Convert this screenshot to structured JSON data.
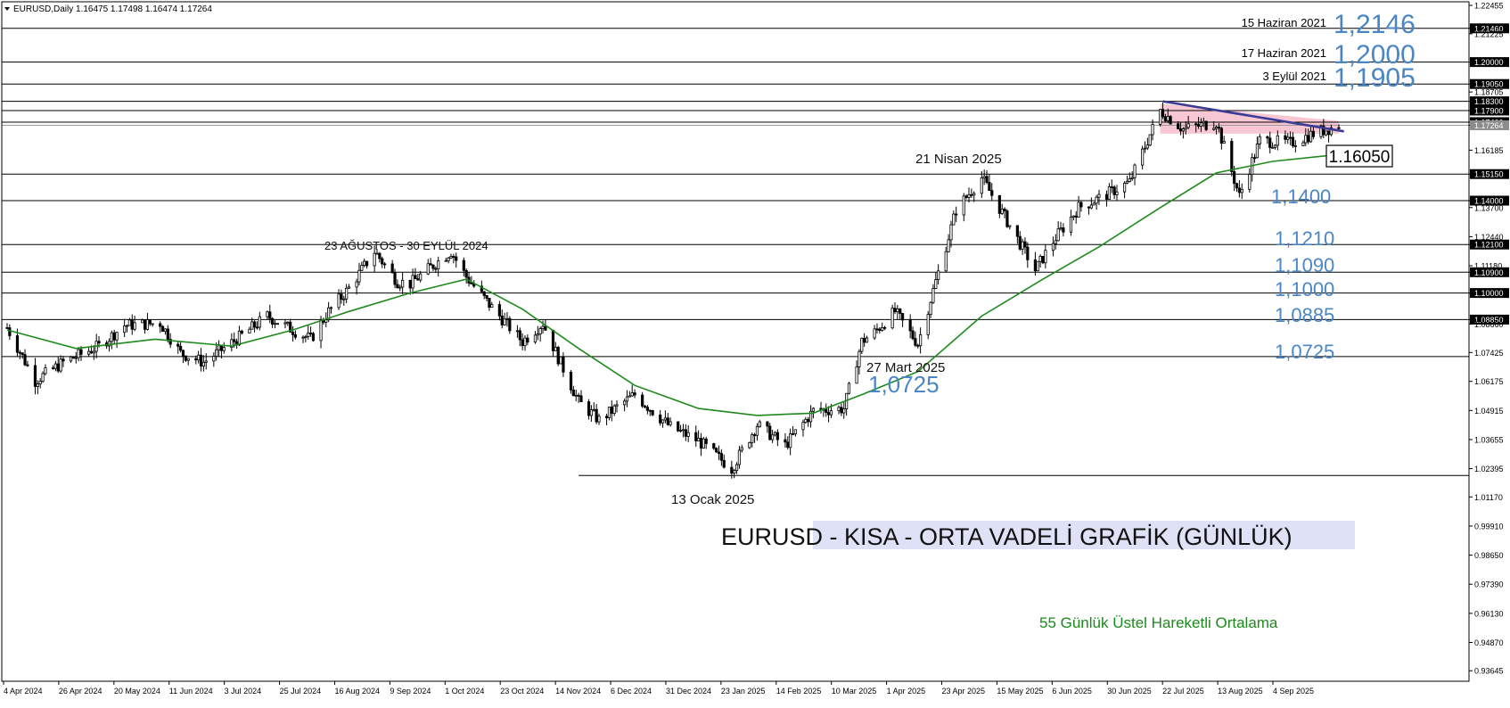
{
  "chart_data": {
    "type": "candlestick",
    "symbol_header": "EURUSD,Daily  1.16475 1.17498 1.16474 1.17264",
    "title": "EURUSD - KISA - ORTA VADELİ GRAFİK (GÜNLÜK)",
    "ma_legend": "55 Günlük Üstel Hareketli Ortalama",
    "ylim": [
      0.9319,
      1.2261
    ],
    "y_ticks": [
      "1.22455",
      "1.21460",
      "1.21225",
      "1.20000",
      "1.19050",
      "1.18705",
      "1.18300",
      "1.17900",
      "1.17400",
      "1.17264",
      "1.16185",
      "1.15150",
      "1.14000",
      "1.13700",
      "1.12440",
      "1.12100",
      "1.11180",
      "1.10900",
      "1.10000",
      "1.08850",
      "1.08660",
      "1.07425",
      "1.06175",
      "1.04915",
      "1.03655",
      "1.02395",
      "1.01170",
      "0.99910",
      "0.98650",
      "0.97390",
      "0.96130",
      "0.94870",
      "0.93645"
    ],
    "highlighted_ticks": [
      "1.21460",
      "1.20000",
      "1.19050",
      "1.18300",
      "1.17900",
      "1.17400",
      "1.15150",
      "1.14000",
      "1.12100",
      "1.10900",
      "1.10000",
      "1.08850"
    ],
    "current_price_tick": "1.17264",
    "x_ticks": [
      "4 Apr 2024",
      "26 Apr 2024",
      "20 May 2024",
      "11 Jun 2024",
      "3 Jul 2024",
      "25 Jul 2024",
      "16 Aug 2024",
      "9 Sep 2024",
      "1 Oct 2024",
      "23 Oct 2024",
      "14 Nov 2024",
      "6 Dec 2024",
      "31 Dec 2024",
      "23 Jan 2025",
      "14 Feb 2025",
      "10 Mar 2025",
      "1 Apr 2025",
      "23 Apr 2025",
      "15 May 2025",
      "6 Jun 2025",
      "30 Jun 2025",
      "22 Jul 2025",
      "13 Aug 2025",
      "4 Sep 2025"
    ],
    "levels": [
      1.2146,
      1.2,
      1.1905,
      1.183,
      1.179,
      1.174,
      1.1515,
      1.14,
      1.121,
      1.109,
      1.1,
      1.0885,
      1.0725
    ],
    "level_labels": [
      {
        "date": "15 Haziran 2021",
        "value": "1,2146"
      },
      {
        "date": "17 Haziran 2021",
        "value": "1,2000"
      },
      {
        "date": "3 Eylül 2021",
        "value": "1,1905"
      },
      {
        "value": "1,1400"
      },
      {
        "value": "1,1210"
      },
      {
        "value": "1,1090"
      },
      {
        "value": "1,1000"
      },
      {
        "value": "1,0885"
      },
      {
        "value": "1,0725"
      }
    ],
    "annotations": [
      {
        "text": "23 AĞUSTOS - 30 EYLÜL 2024",
        "x": "2024-08-23",
        "y": 1.122
      },
      {
        "text": "21 Nisan 2025",
        "x": "2025-04-21",
        "y": 1.159
      },
      {
        "text": "27 Mart 2025",
        "x": "2025-03-27",
        "y": 1.074
      },
      {
        "text": "1,0725",
        "x": "2025-03-27",
        "y": 1.0725,
        "big": true
      },
      {
        "text": "13 Ocak 2025",
        "x": "2025-01-13",
        "y": 1.015
      }
    ],
    "low_line": {
      "from": "2024-11-14",
      "value": 1.021
    },
    "price_box": "1.16050",
    "trendline": {
      "from": [
        "2025-07-01",
        1.183
      ],
      "to": [
        "2025-09-10",
        1.17
      ]
    },
    "series_close": [
      [
        "2024-04-04",
        1.085
      ],
      [
        "2024-04-15",
        1.062
      ],
      [
        "2024-04-26",
        1.07
      ],
      [
        "2024-05-10",
        1.077
      ],
      [
        "2024-05-20",
        1.086
      ],
      [
        "2024-06-03",
        1.087
      ],
      [
        "2024-06-11",
        1.074
      ],
      [
        "2024-06-20",
        1.07
      ],
      [
        "2024-07-03",
        1.08
      ],
      [
        "2024-07-15",
        1.09
      ],
      [
        "2024-07-25",
        1.084
      ],
      [
        "2024-08-01",
        1.08
      ],
      [
        "2024-08-08",
        1.092
      ],
      [
        "2024-08-16",
        1.102
      ],
      [
        "2024-08-26",
        1.118
      ],
      [
        "2024-09-04",
        1.105
      ],
      [
        "2024-09-09",
        1.104
      ],
      [
        "2024-09-18",
        1.112
      ],
      [
        "2024-09-25",
        1.118
      ],
      [
        "2024-10-01",
        1.107
      ],
      [
        "2024-10-10",
        1.095
      ],
      [
        "2024-10-23",
        1.079
      ],
      [
        "2024-10-31",
        1.087
      ],
      [
        "2024-11-06",
        1.072
      ],
      [
        "2024-11-14",
        1.053
      ],
      [
        "2024-11-22",
        1.045
      ],
      [
        "2024-12-06",
        1.056
      ],
      [
        "2024-12-20",
        1.042
      ],
      [
        "2024-12-31",
        1.036
      ],
      [
        "2025-01-13",
        1.024
      ],
      [
        "2025-01-23",
        1.043
      ],
      [
        "2025-02-03",
        1.034
      ],
      [
        "2025-02-14",
        1.049
      ],
      [
        "2025-02-26",
        1.05
      ],
      [
        "2025-03-05",
        1.079
      ],
      [
        "2025-03-10",
        1.083
      ],
      [
        "2025-03-18",
        1.092
      ],
      [
        "2025-03-27",
        1.078
      ],
      [
        "2025-04-03",
        1.105
      ],
      [
        "2025-04-11",
        1.136
      ],
      [
        "2025-04-21",
        1.15
      ],
      [
        "2025-04-30",
        1.133
      ],
      [
        "2025-05-12",
        1.11
      ],
      [
        "2025-05-20",
        1.124
      ],
      [
        "2025-05-29",
        1.137
      ],
      [
        "2025-06-06",
        1.141
      ],
      [
        "2025-06-18",
        1.148
      ],
      [
        "2025-06-30",
        1.179
      ],
      [
        "2025-07-09",
        1.171
      ],
      [
        "2025-07-22",
        1.174
      ],
      [
        "2025-07-31",
        1.142
      ],
      [
        "2025-08-08",
        1.166
      ],
      [
        "2025-08-20",
        1.165
      ],
      [
        "2025-08-29",
        1.169
      ],
      [
        "2025-09-08",
        1.1726
      ]
    ],
    "series_ema": [
      [
        "2024-04-04",
        1.084
      ],
      [
        "2024-05-01",
        1.076
      ],
      [
        "2024-06-01",
        1.08
      ],
      [
        "2024-07-01",
        1.077
      ],
      [
        "2024-07-25",
        1.084
      ],
      [
        "2024-08-16",
        1.092
      ],
      [
        "2024-09-09",
        1.1
      ],
      [
        "2024-10-01",
        1.106
      ],
      [
        "2024-10-23",
        1.093
      ],
      [
        "2024-11-14",
        1.076
      ],
      [
        "2024-12-06",
        1.06
      ],
      [
        "2024-12-31",
        1.05
      ],
      [
        "2025-01-23",
        1.047
      ],
      [
        "2025-02-14",
        1.048
      ],
      [
        "2025-03-05",
        1.056
      ],
      [
        "2025-03-27",
        1.066
      ],
      [
        "2025-04-21",
        1.09
      ],
      [
        "2025-05-15",
        1.106
      ],
      [
        "2025-06-06",
        1.12
      ],
      [
        "2025-06-30",
        1.137
      ],
      [
        "2025-07-22",
        1.152
      ],
      [
        "2025-08-13",
        1.157
      ],
      [
        "2025-09-08",
        1.16
      ]
    ]
  }
}
